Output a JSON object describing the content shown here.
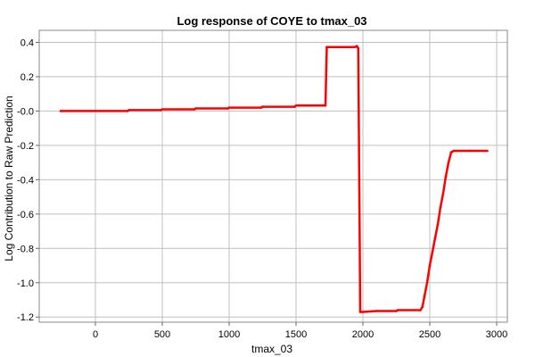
{
  "chart_data": {
    "type": "line",
    "title": "Log response of COYE to tmax_03",
    "xlabel": "tmax_03",
    "ylabel": "Log Contribution to Raw Prediction",
    "xlim": [
      -420,
      3080
    ],
    "ylim": [
      -1.23,
      0.47
    ],
    "x_ticks": [
      0,
      500,
      1000,
      1500,
      2000,
      2500,
      3000
    ],
    "x_tick_labels": [
      "0",
      "500",
      "1000",
      "1500",
      "2000",
      "2500",
      "3000"
    ],
    "y_ticks": [
      0.4,
      0.2,
      0.0,
      -0.2,
      -0.4,
      -0.6,
      -0.8,
      -1.0,
      -1.2
    ],
    "y_tick_labels": [
      "0.4",
      "0.2",
      "-0.0",
      "-0.2",
      "-0.4",
      "-0.6",
      "-0.8",
      "-1.0",
      "-1.2"
    ],
    "grid": true,
    "line_color": "#ff0000",
    "series": [
      {
        "x": [
          -260,
          240,
          250,
          490,
          500,
          740,
          750,
          990,
          1000,
          1240,
          1250,
          1490,
          1500,
          1720,
          1730,
          1940,
          1955,
          1965,
          1980,
          2000,
          2100,
          2250,
          2260,
          2430,
          2445,
          2460,
          2480,
          2500,
          2520,
          2540,
          2560,
          2580,
          2600,
          2620,
          2640,
          2660,
          2680,
          2700,
          2800,
          2930
        ],
        "y": [
          0.0,
          0.0,
          0.005,
          0.005,
          0.01,
          0.01,
          0.015,
          0.015,
          0.02,
          0.02,
          0.025,
          0.025,
          0.032,
          0.032,
          0.373,
          0.373,
          0.378,
          0.365,
          -1.17,
          -1.17,
          -1.165,
          -1.165,
          -1.16,
          -1.16,
          -1.14,
          -1.08,
          -1.0,
          -0.9,
          -0.82,
          -0.74,
          -0.66,
          -0.56,
          -0.48,
          -0.38,
          -0.3,
          -0.24,
          -0.232,
          -0.232,
          -0.232,
          -0.232
        ]
      }
    ]
  }
}
